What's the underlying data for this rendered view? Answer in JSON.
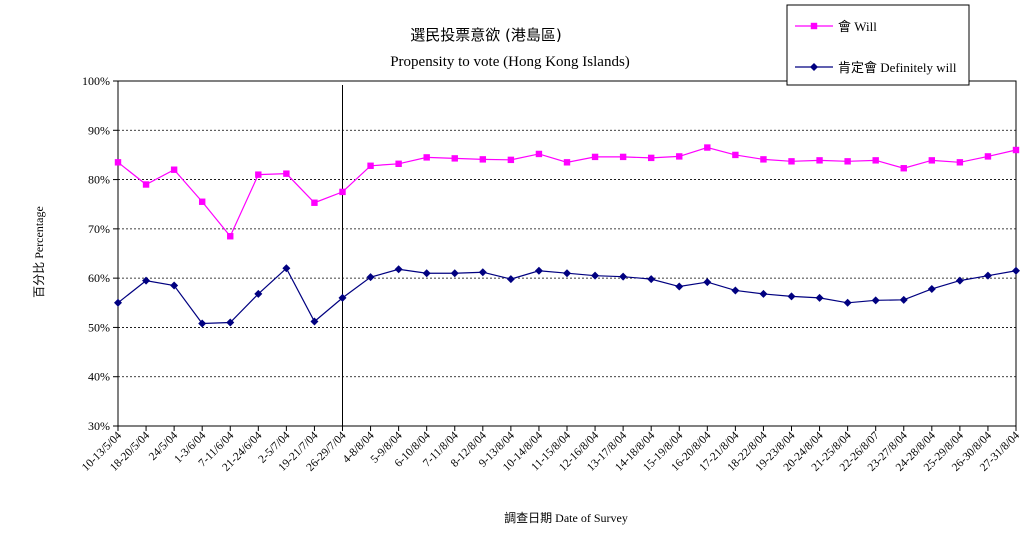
{
  "chart_data": {
    "type": "line",
    "title": "選民投票意欲 (港島區)",
    "subtitle": "Propensity to vote (Hong Kong Islands)",
    "xlabel": "調查日期 Date of Survey",
    "ylabel": "百分比 Percentage",
    "ylim": [
      30,
      100
    ],
    "yticks": [
      30,
      40,
      50,
      60,
      70,
      80,
      90,
      100
    ],
    "ytick_suffix": "%",
    "grid": true,
    "legend_position": "top-right",
    "divider_after_category": "26-29/7/04",
    "categories": [
      "10-13/5/04",
      "18-20/5/04",
      "24/5/04",
      "1-3/6/04",
      "7-11/6/04",
      "21-24/6/04",
      "2-5/7/04",
      "19-21/7/04",
      "26-29/7/04",
      "4-8/8/04",
      "5-9/8/04",
      "6-10/8/04",
      "7-11/8/04",
      "8-12/8/04",
      "9-13/8/04",
      "10-14/8/04",
      "11-15/8/04",
      "12-16/8/04",
      "13-17/8/04",
      "14-18/8/04",
      "15-19/8/04",
      "16-20/8/04",
      "17-21/8/04",
      "18-22/8/04",
      "19-23/8/04",
      "20-24/8/04",
      "21-25/8/04",
      "22-26/8/07",
      "23-27/8/04",
      "24-28/8/04",
      "25-29/8/04",
      "26-30/8/04",
      "27-31/8/04"
    ],
    "series": [
      {
        "name": "會 Will",
        "color": "#ff00ff",
        "marker": "square",
        "values": [
          83.5,
          79,
          82,
          75.5,
          68.5,
          81,
          81.2,
          75.3,
          77.5,
          82.8,
          83.2,
          84.5,
          84.3,
          84.1,
          84,
          85.2,
          83.5,
          84.6,
          84.6,
          84.4,
          84.7,
          86.5,
          85,
          84.1,
          83.7,
          83.9,
          83.7,
          83.9,
          82.3,
          83.9,
          83.5,
          84.7,
          86
        ]
      },
      {
        "name": "肯定會 Definitely will",
        "color": "#000080",
        "marker": "diamond",
        "values": [
          55,
          59.5,
          58.5,
          50.8,
          51,
          56.8,
          62,
          51.2,
          56,
          60.2,
          61.8,
          61,
          61,
          61.2,
          59.8,
          61.5,
          61,
          60.5,
          60.3,
          59.8,
          58.3,
          59.2,
          57.5,
          56.8,
          56.3,
          56,
          55,
          55.5,
          55.6,
          57.8,
          59.5,
          60.5,
          61.5
        ]
      }
    ]
  }
}
